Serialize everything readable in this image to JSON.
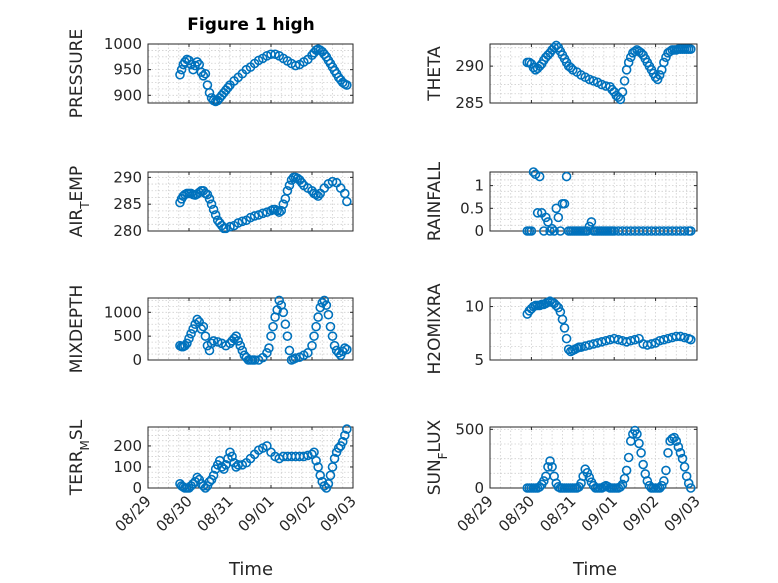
{
  "title": "Figure 1 high",
  "marker_color": "#0072BD",
  "x_tick_labels": [
    "08/29",
    "08/30",
    "08/31",
    "09/01",
    "09/02",
    "09/03"
  ],
  "xlabel": "Time",
  "chart_data": [
    {
      "type": "scatter",
      "name": "pressure",
      "ylabel": "PRESSURE",
      "ylim": [
        885,
        1000
      ],
      "yticks": [
        900,
        950,
        1000
      ],
      "xlim": [
        0,
        5
      ],
      "x": [
        0.78,
        0.82,
        0.86,
        0.9,
        0.95,
        1.0,
        1.05,
        1.1,
        1.15,
        1.2,
        1.25,
        1.3,
        1.35,
        1.4,
        1.45,
        1.5,
        1.55,
        1.6,
        1.65,
        1.7,
        1.75,
        1.8,
        1.85,
        1.9,
        1.95,
        2.0,
        2.1,
        2.2,
        2.3,
        2.4,
        2.5,
        2.6,
        2.7,
        2.8,
        2.9,
        3.0,
        3.1,
        3.2,
        3.3,
        3.4,
        3.5,
        3.6,
        3.7,
        3.8,
        3.9,
        4.0,
        4.05,
        4.1,
        4.15,
        4.2,
        4.25,
        4.3,
        4.35,
        4.4,
        4.45,
        4.5,
        4.55,
        4.6,
        4.65,
        4.7,
        4.75,
        4.8,
        4.85
      ],
      "y": [
        940,
        950,
        960,
        965,
        970,
        968,
        960,
        950,
        958,
        965,
        960,
        945,
        938,
        942,
        920,
        905,
        895,
        890,
        888,
        890,
        895,
        900,
        905,
        910,
        915,
        920,
        928,
        935,
        942,
        950,
        955,
        962,
        968,
        972,
        977,
        980,
        980,
        977,
        972,
        967,
        962,
        958,
        960,
        965,
        970,
        978,
        983,
        988,
        990,
        988,
        985,
        980,
        975,
        968,
        962,
        955,
        948,
        942,
        935,
        930,
        925,
        922,
        920
      ]
    },
    {
      "type": "scatter",
      "name": "theta",
      "ylabel": "THETA",
      "ylim": [
        285,
        293
      ],
      "yticks": [
        285,
        290
      ],
      "xlim": [
        0,
        5
      ],
      "x": [
        0.9,
        0.95,
        1.0,
        1.05,
        1.1,
        1.15,
        1.2,
        1.25,
        1.3,
        1.35,
        1.4,
        1.45,
        1.5,
        1.55,
        1.6,
        1.65,
        1.7,
        1.75,
        1.8,
        1.85,
        1.9,
        1.95,
        2.0,
        2.1,
        2.2,
        2.3,
        2.4,
        2.5,
        2.6,
        2.7,
        2.8,
        2.9,
        2.95,
        3.0,
        3.05,
        3.1,
        3.15,
        3.2,
        3.25,
        3.3,
        3.35,
        3.4,
        3.45,
        3.5,
        3.55,
        3.6,
        3.65,
        3.7,
        3.75,
        3.8,
        3.85,
        3.9,
        3.95,
        4.0,
        4.05,
        4.1,
        4.15,
        4.2,
        4.25,
        4.3,
        4.35,
        4.4,
        4.45,
        4.5,
        4.55,
        4.6,
        4.65,
        4.7,
        4.75,
        4.8,
        4.85
      ],
      "y": [
        290.5,
        290.5,
        290.3,
        289.8,
        289.5,
        289.7,
        290,
        290.3,
        290.8,
        291.2,
        291.5,
        291.8,
        292.2,
        292.5,
        292.8,
        292.5,
        292.0,
        291.5,
        291.0,
        290.5,
        290.0,
        289.8,
        289.5,
        289.2,
        288.8,
        288.5,
        288.2,
        288,
        287.8,
        287.5,
        287.3,
        287.2,
        286.8,
        286.5,
        286.0,
        285.8,
        285.5,
        286.5,
        288.0,
        289.5,
        290.5,
        291.2,
        291.8,
        292.0,
        292.2,
        292.0,
        291.8,
        291.5,
        291.0,
        290.5,
        290.0,
        289.5,
        289.0,
        288.5,
        288.2,
        288.8,
        289.5,
        290.5,
        291.2,
        291.8,
        292.0,
        292.2,
        292.2,
        292.2,
        292.3,
        292.3,
        292.3,
        292.3,
        292.3,
        292.3,
        292.3
      ]
    },
    {
      "type": "scatter",
      "name": "air_temp",
      "ylabel": "AIR_TEMP",
      "ylim": [
        280,
        291
      ],
      "yticks": [
        280,
        285,
        290
      ],
      "xlim": [
        0,
        5
      ],
      "x": [
        0.78,
        0.82,
        0.86,
        0.9,
        0.95,
        1.0,
        1.05,
        1.1,
        1.15,
        1.2,
        1.25,
        1.3,
        1.35,
        1.4,
        1.45,
        1.5,
        1.55,
        1.6,
        1.65,
        1.7,
        1.75,
        1.8,
        1.85,
        1.9,
        2.0,
        2.1,
        2.2,
        2.3,
        2.4,
        2.5,
        2.6,
        2.7,
        2.8,
        2.9,
        3.0,
        3.05,
        3.1,
        3.15,
        3.2,
        3.25,
        3.3,
        3.35,
        3.4,
        3.45,
        3.5,
        3.55,
        3.6,
        3.65,
        3.7,
        3.75,
        3.8,
        3.9,
        4.0,
        4.05,
        4.1,
        4.15,
        4.2,
        4.3,
        4.4,
        4.5,
        4.6,
        4.7,
        4.8,
        4.85
      ],
      "y": [
        285.3,
        286,
        286.5,
        286.8,
        287,
        287,
        287,
        286.8,
        286.7,
        286.9,
        287.2,
        287.5,
        287.5,
        287,
        286.8,
        286,
        285,
        284,
        283,
        282,
        281.5,
        281,
        280.5,
        280.5,
        280.8,
        281,
        281.5,
        281.8,
        282,
        282.5,
        282.8,
        283,
        283.3,
        283.5,
        283.8,
        284,
        284,
        283.8,
        283.5,
        283.8,
        285,
        286,
        287.5,
        288.5,
        289.5,
        290,
        290,
        289.8,
        289.5,
        289,
        288.5,
        288,
        287.5,
        287,
        286.8,
        286.5,
        287,
        288,
        288.8,
        289.2,
        289,
        288,
        287,
        285.5
      ]
    },
    {
      "type": "scatter",
      "name": "rainfall",
      "ylabel": "RAINFALL",
      "ylim": [
        0,
        1.3
      ],
      "yticks": [
        0,
        0.5,
        1
      ],
      "xlim": [
        0,
        5
      ],
      "x": [
        0.9,
        0.95,
        1.0,
        1.05,
        1.1,
        1.15,
        1.2,
        1.25,
        1.3,
        1.35,
        1.4,
        1.45,
        1.5,
        1.55,
        1.6,
        1.65,
        1.7,
        1.75,
        1.8,
        1.85,
        1.9,
        1.95,
        2.0,
        2.05,
        2.1,
        2.15,
        2.2,
        2.25,
        2.3,
        2.35,
        2.4,
        2.45,
        2.5,
        2.55,
        2.6,
        2.65,
        2.7,
        2.75,
        2.8,
        2.85,
        2.9,
        2.95,
        3.0,
        3.1,
        3.2,
        3.3,
        3.4,
        3.5,
        3.6,
        3.7,
        3.8,
        3.9,
        4.0,
        4.1,
        4.2,
        4.3,
        4.4,
        4.5,
        4.6,
        4.7,
        4.8,
        4.85
      ],
      "y": [
        0,
        0,
        0,
        1.3,
        1.25,
        0.4,
        1.2,
        0.4,
        0,
        0.3,
        0.2,
        0,
        0.05,
        0,
        0.5,
        0.3,
        0,
        0.6,
        0.6,
        1.2,
        0,
        0,
        0,
        0,
        0,
        0,
        0,
        0,
        0,
        0,
        0.1,
        0.2,
        0,
        0,
        0,
        0,
        0,
        0,
        0,
        0,
        0,
        0,
        0,
        0,
        0,
        0,
        0,
        0,
        0,
        0,
        0,
        0,
        0,
        0,
        0,
        0,
        0,
        0,
        0,
        0,
        0,
        0
      ]
    },
    {
      "type": "scatter",
      "name": "mixdepth",
      "ylabel": "MIXDEPTH",
      "ylim": [
        0,
        1300
      ],
      "yticks": [
        0,
        500,
        1000
      ],
      "xlim": [
        0,
        5
      ],
      "x": [
        0.78,
        0.82,
        0.86,
        0.9,
        0.95,
        1.0,
        1.05,
        1.1,
        1.15,
        1.2,
        1.25,
        1.3,
        1.35,
        1.4,
        1.45,
        1.5,
        1.55,
        1.6,
        1.7,
        1.8,
        1.9,
        2.0,
        2.05,
        2.1,
        2.15,
        2.2,
        2.25,
        2.3,
        2.35,
        2.4,
        2.45,
        2.5,
        2.55,
        2.6,
        2.7,
        2.8,
        2.9,
        2.95,
        3.0,
        3.05,
        3.1,
        3.15,
        3.2,
        3.25,
        3.3,
        3.35,
        3.4,
        3.45,
        3.5,
        3.55,
        3.6,
        3.7,
        3.8,
        3.9,
        4.0,
        4.05,
        4.1,
        4.15,
        4.2,
        4.25,
        4.3,
        4.35,
        4.4,
        4.45,
        4.5,
        4.55,
        4.6,
        4.65,
        4.7,
        4.75,
        4.8,
        4.85
      ],
      "y": [
        300,
        280,
        280,
        300,
        350,
        450,
        550,
        650,
        750,
        850,
        800,
        650,
        700,
        500,
        300,
        200,
        350,
        400,
        380,
        350,
        300,
        350,
        400,
        450,
        500,
        400,
        300,
        200,
        100,
        50,
        0,
        0,
        0,
        0,
        0,
        50,
        150,
        250,
        500,
        700,
        900,
        1050,
        1250,
        1150,
        1000,
        750,
        500,
        200,
        0,
        20,
        40,
        60,
        100,
        150,
        300,
        500,
        700,
        900,
        1100,
        1200,
        1250,
        1150,
        950,
        700,
        500,
        300,
        200,
        150,
        100,
        180,
        250,
        220
      ]
    },
    {
      "type": "scatter",
      "name": "h2omixra",
      "ylabel": "H2OMIXRA",
      "ylim": [
        5,
        10.8
      ],
      "yticks": [
        5,
        10
      ],
      "xlim": [
        0,
        5
      ],
      "x": [
        0.9,
        0.95,
        1.0,
        1.05,
        1.1,
        1.15,
        1.2,
        1.25,
        1.3,
        1.35,
        1.4,
        1.45,
        1.5,
        1.55,
        1.6,
        1.65,
        1.7,
        1.75,
        1.8,
        1.85,
        1.9,
        1.95,
        2.0,
        2.05,
        2.1,
        2.15,
        2.2,
        2.3,
        2.4,
        2.5,
        2.6,
        2.7,
        2.8,
        2.9,
        3.0,
        3.1,
        3.2,
        3.3,
        3.4,
        3.5,
        3.6,
        3.7,
        3.8,
        3.9,
        4.0,
        4.1,
        4.2,
        4.3,
        4.4,
        4.5,
        4.6,
        4.7,
        4.8,
        4.85
      ],
      "y": [
        9.3,
        9.6,
        9.8,
        10,
        10.1,
        10.1,
        10.1,
        10.2,
        10.2,
        10.3,
        10.4,
        10.5,
        10.4,
        10.3,
        10.1,
        9.9,
        9.5,
        8.8,
        8.0,
        7.0,
        6.0,
        5.8,
        5.9,
        6.0,
        6.1,
        6.2,
        6.2,
        6.3,
        6.4,
        6.5,
        6.6,
        6.7,
        6.8,
        6.9,
        7.0,
        6.9,
        6.8,
        6.7,
        6.8,
        6.9,
        7.0,
        6.5,
        6.4,
        6.5,
        6.6,
        6.8,
        6.9,
        7.0,
        7.1,
        7.2,
        7.2,
        7.1,
        7.0,
        6.9
      ]
    },
    {
      "type": "scatter",
      "name": "terr_msl",
      "ylabel": "TERR_MSL",
      "ylim": [
        0,
        290
      ],
      "yticks": [
        0,
        100,
        200
      ],
      "xlim": [
        0,
        5
      ],
      "x": [
        0.78,
        0.82,
        0.86,
        0.9,
        0.95,
        1.0,
        1.05,
        1.1,
        1.15,
        1.2,
        1.25,
        1.3,
        1.35,
        1.4,
        1.45,
        1.5,
        1.55,
        1.6,
        1.65,
        1.7,
        1.75,
        1.8,
        1.85,
        1.9,
        1.95,
        2.0,
        2.05,
        2.1,
        2.15,
        2.2,
        2.3,
        2.4,
        2.5,
        2.6,
        2.7,
        2.8,
        2.9,
        3.0,
        3.1,
        3.2,
        3.3,
        3.4,
        3.5,
        3.6,
        3.7,
        3.8,
        3.9,
        4.0,
        4.05,
        4.1,
        4.15,
        4.2,
        4.25,
        4.3,
        4.35,
        4.4,
        4.45,
        4.5,
        4.55,
        4.6,
        4.65,
        4.7,
        4.75,
        4.8,
        4.85
      ],
      "y": [
        20,
        10,
        5,
        0,
        0,
        0,
        10,
        20,
        30,
        50,
        40,
        20,
        10,
        0,
        10,
        30,
        40,
        60,
        90,
        110,
        130,
        100,
        90,
        110,
        140,
        170,
        150,
        120,
        100,
        110,
        110,
        120,
        140,
        160,
        180,
        190,
        200,
        170,
        150,
        140,
        150,
        150,
        150,
        150,
        150,
        150,
        155,
        160,
        170,
        130,
        100,
        60,
        30,
        10,
        0,
        20,
        60,
        100,
        140,
        170,
        190,
        200,
        220,
        250,
        280
      ]
    },
    {
      "type": "scatter",
      "name": "sun_flux",
      "ylabel": "SUN_FLUX",
      "ylim": [
        0,
        520
      ],
      "yticks": [
        0,
        500
      ],
      "xlim": [
        0,
        5
      ],
      "x": [
        0.9,
        0.95,
        1.0,
        1.05,
        1.1,
        1.15,
        1.2,
        1.25,
        1.3,
        1.35,
        1.4,
        1.45,
        1.5,
        1.55,
        1.6,
        1.65,
        1.7,
        1.75,
        1.8,
        1.85,
        1.9,
        1.95,
        2.0,
        2.05,
        2.1,
        2.15,
        2.2,
        2.25,
        2.3,
        2.35,
        2.4,
        2.45,
        2.5,
        2.55,
        2.6,
        2.65,
        2.7,
        2.75,
        2.8,
        2.85,
        2.9,
        2.95,
        3.0,
        3.05,
        3.1,
        3.15,
        3.2,
        3.25,
        3.3,
        3.35,
        3.4,
        3.45,
        3.5,
        3.55,
        3.6,
        3.65,
        3.7,
        3.75,
        3.8,
        3.85,
        3.9,
        3.95,
        4.0,
        4.05,
        4.1,
        4.15,
        4.2,
        4.25,
        4.3,
        4.35,
        4.4,
        4.45,
        4.5,
        4.55,
        4.6,
        4.65,
        4.7,
        4.75,
        4.8,
        4.85
      ],
      "y": [
        0,
        0,
        0,
        0,
        0,
        0,
        10,
        30,
        60,
        100,
        180,
        230,
        180,
        100,
        40,
        10,
        0,
        0,
        0,
        0,
        0,
        0,
        0,
        0,
        0,
        10,
        40,
        100,
        160,
        130,
        90,
        50,
        20,
        0,
        0,
        0,
        0,
        10,
        20,
        10,
        0,
        0,
        0,
        0,
        0,
        10,
        30,
        80,
        150,
        260,
        400,
        460,
        490,
        460,
        380,
        300,
        200,
        120,
        60,
        20,
        0,
        0,
        0,
        0,
        0,
        20,
        60,
        150,
        300,
        400,
        420,
        430,
        400,
        350,
        300,
        250,
        180,
        100,
        40,
        0
      ]
    }
  ]
}
